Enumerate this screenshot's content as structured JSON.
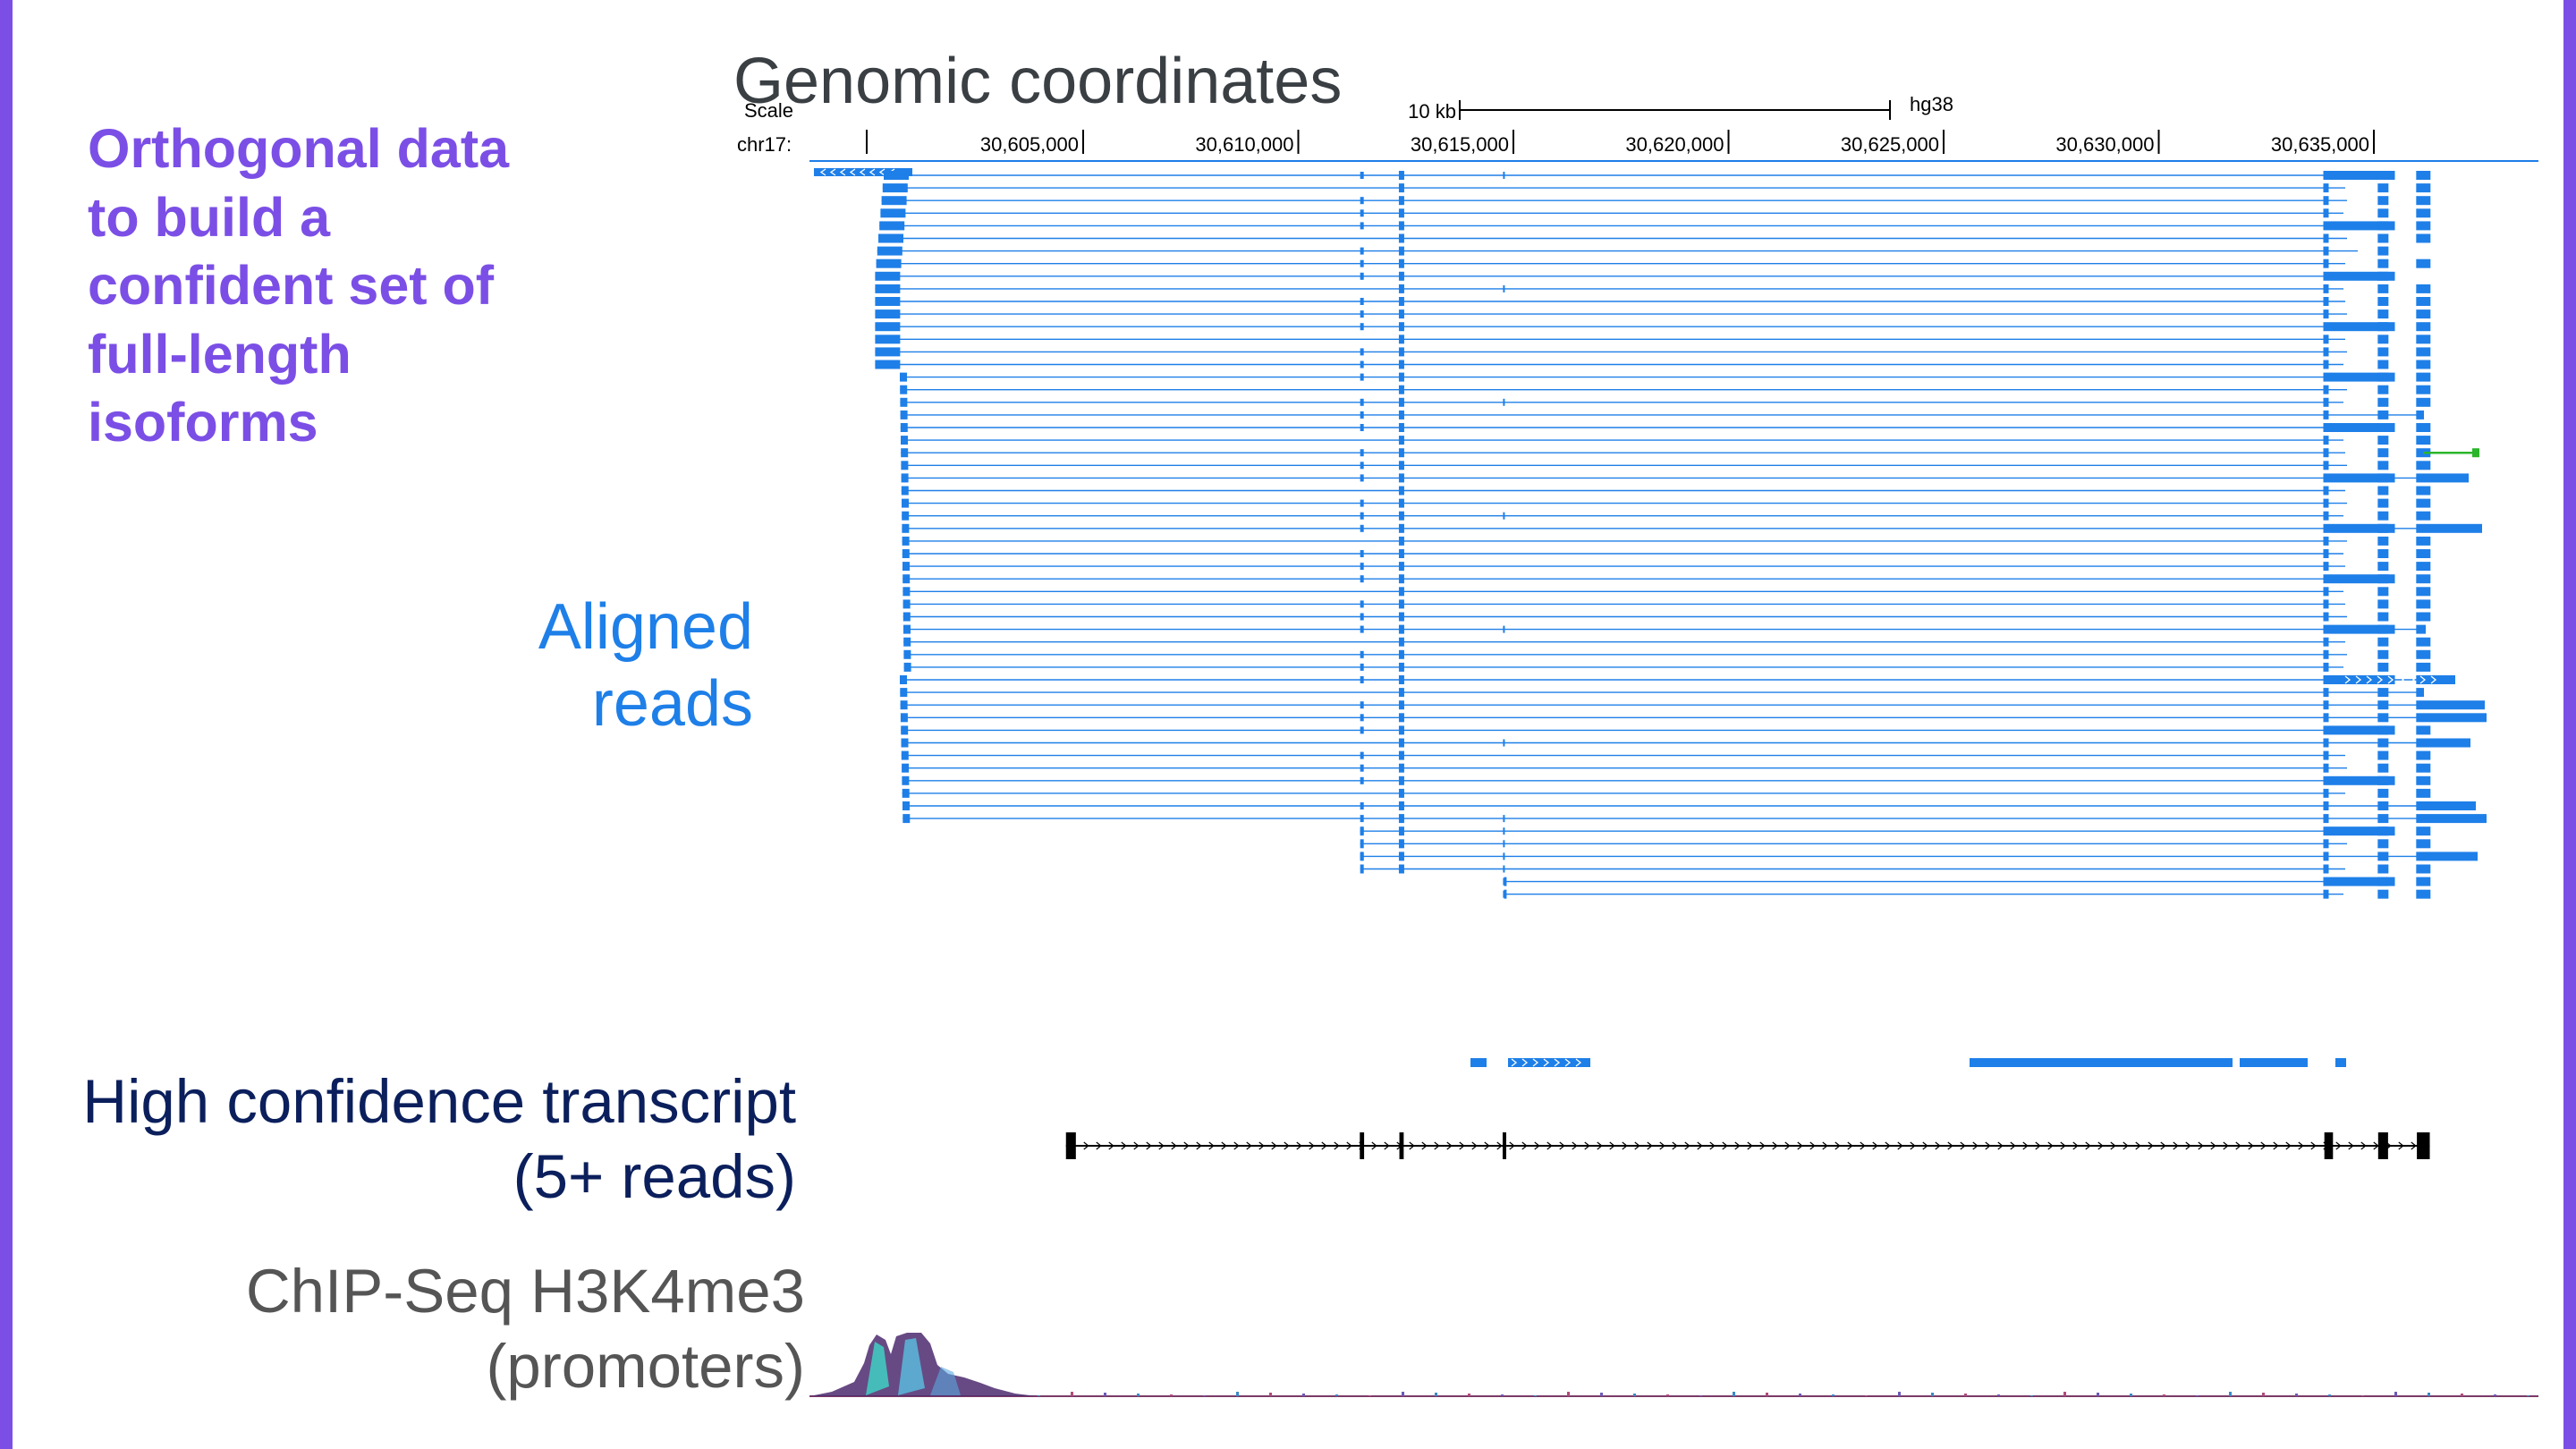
{
  "colors": {
    "accent": "#7B4FE6",
    "read_blue": "#1E7FE8",
    "green_read": "#2BB52B",
    "navy": "#0B1F5C",
    "gray": "#555555"
  },
  "heading": {
    "lines": [
      "Orthogonal data",
      "to build a",
      "confident set of",
      "full-length",
      "isoforms"
    ]
  },
  "labels": {
    "genomic_coordinates": "Genomic coordinates",
    "aligned_reads": [
      "Aligned",
      "reads"
    ],
    "high_confidence": [
      "High confidence transcript",
      "(5+ reads)"
    ],
    "chip_seq": [
      "ChIP-Seq H3K4me3",
      "(promoters)"
    ]
  },
  "browser": {
    "scale_label": "Scale",
    "scale_bar_label": "10 kb",
    "assembly": "hg38",
    "chrom_label": "chr17:",
    "ticks": [
      {
        "position": 30605000,
        "label": "30,605,000"
      },
      {
        "position": 30610000,
        "label": "30,610,000"
      },
      {
        "position": 30615000,
        "label": "30,615,000"
      },
      {
        "position": 30620000,
        "label": "30,620,000"
      },
      {
        "position": 30625000,
        "label": "30,625,000"
      },
      {
        "position": 30630000,
        "label": "30,630,000"
      },
      {
        "position": 30635000,
        "label": "30,635,000"
      }
    ]
  },
  "transcript": {
    "exons": [
      {
        "start": 30604600,
        "end": 30604830
      },
      {
        "start": 30611430,
        "end": 30611530
      },
      {
        "start": 30612350,
        "end": 30612450
      },
      {
        "start": 30614750,
        "end": 30614800
      },
      {
        "start": 30633850,
        "end": 30634050
      },
      {
        "start": 30635100,
        "end": 30635330
      },
      {
        "start": 30636000,
        "end": 30636300
      }
    ]
  }
}
